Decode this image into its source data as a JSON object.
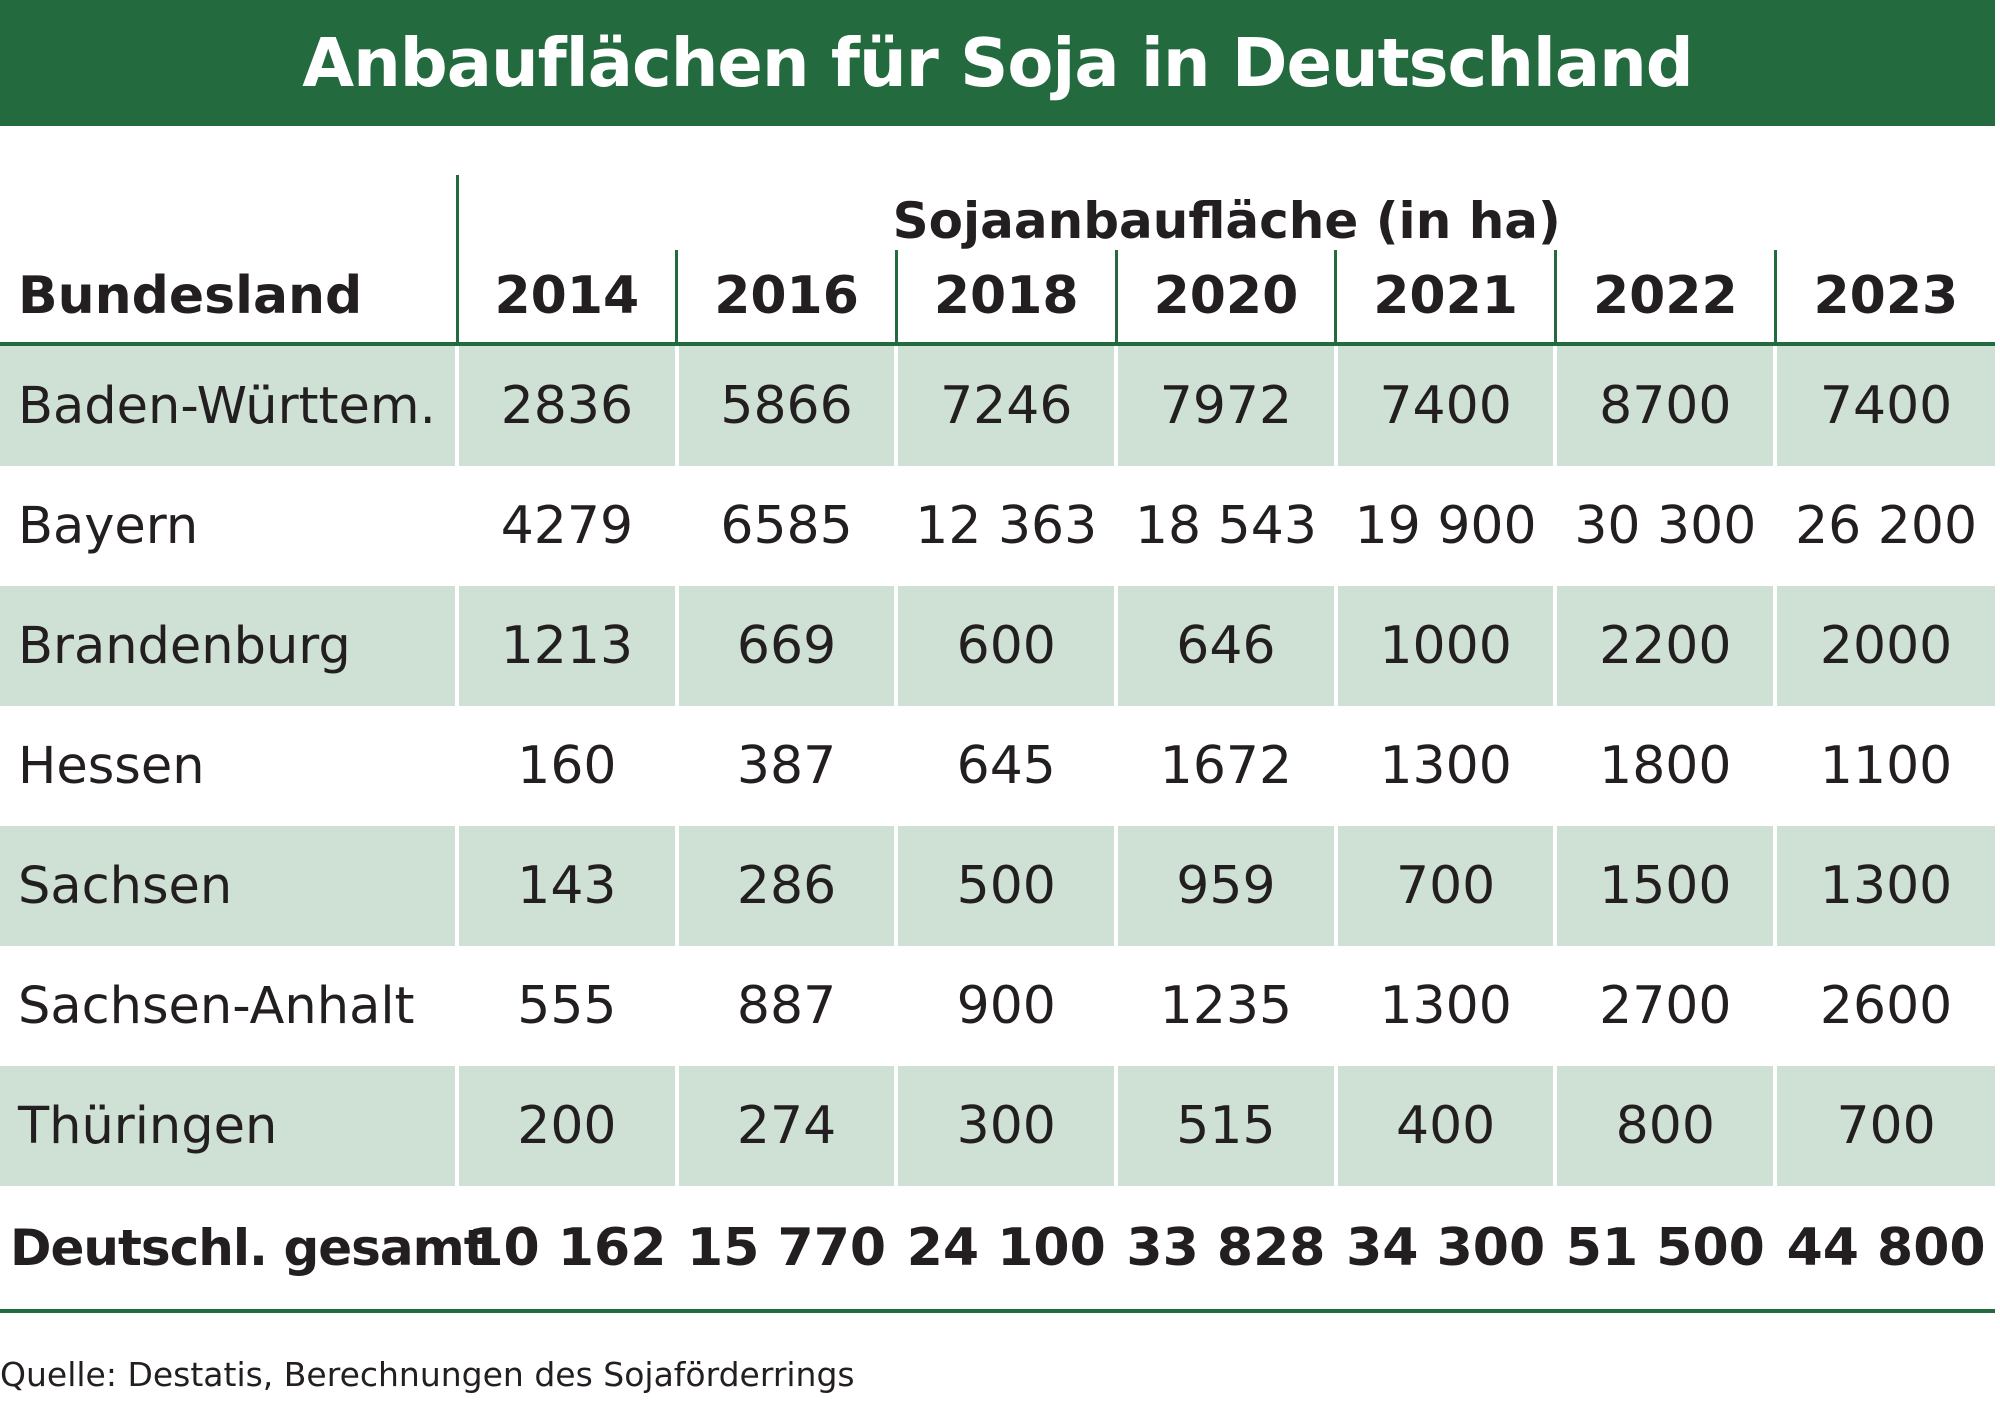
{
  "chart_data": {
    "type": "table",
    "title": "Anbauflächen für Soja in Deutschland",
    "row_header": "Bundesland",
    "column_group_header": "Sojaanbaufläche (in ha)",
    "columns": [
      "2014",
      "2016",
      "2018",
      "2020",
      "2021",
      "2022",
      "2023"
    ],
    "rows": [
      {
        "label": "Baden-Württem.",
        "values": [
          "2836",
          "5866",
          "7246",
          "7972",
          "7400",
          "8700",
          "7400"
        ]
      },
      {
        "label": "Bayern",
        "values": [
          "4279",
          "6585",
          "12 363",
          "18 543",
          "19 900",
          "30 300",
          "26 200"
        ]
      },
      {
        "label": "Brandenburg",
        "values": [
          "1213",
          "669",
          "600",
          "646",
          "1000",
          "2200",
          "2000"
        ]
      },
      {
        "label": "Hessen",
        "values": [
          "160",
          "387",
          "645",
          "1672",
          "1300",
          "1800",
          "1100"
        ]
      },
      {
        "label": "Sachsen",
        "values": [
          "143",
          "286",
          "500",
          "959",
          "700",
          "1500",
          "1300"
        ]
      },
      {
        "label": "Sachsen-Anhalt",
        "values": [
          "555",
          "887",
          "900",
          "1235",
          "1300",
          "2700",
          "2600"
        ]
      },
      {
        "label": "Thüringen",
        "values": [
          "200",
          "274",
          "300",
          "515",
          "400",
          "800",
          "700"
        ]
      }
    ],
    "total": {
      "label": "Deutschl. gesamt",
      "values": [
        "10 162",
        "15 770",
        "24 100",
        "33 828",
        "34 300",
        "51 500",
        "44 800"
      ]
    },
    "source": "Quelle: Destatis, Berechnungen des Sojaförderrings"
  },
  "colors": {
    "accent": "#236b3e",
    "row_shade": "#cfe0d5",
    "text": "#231f20"
  }
}
